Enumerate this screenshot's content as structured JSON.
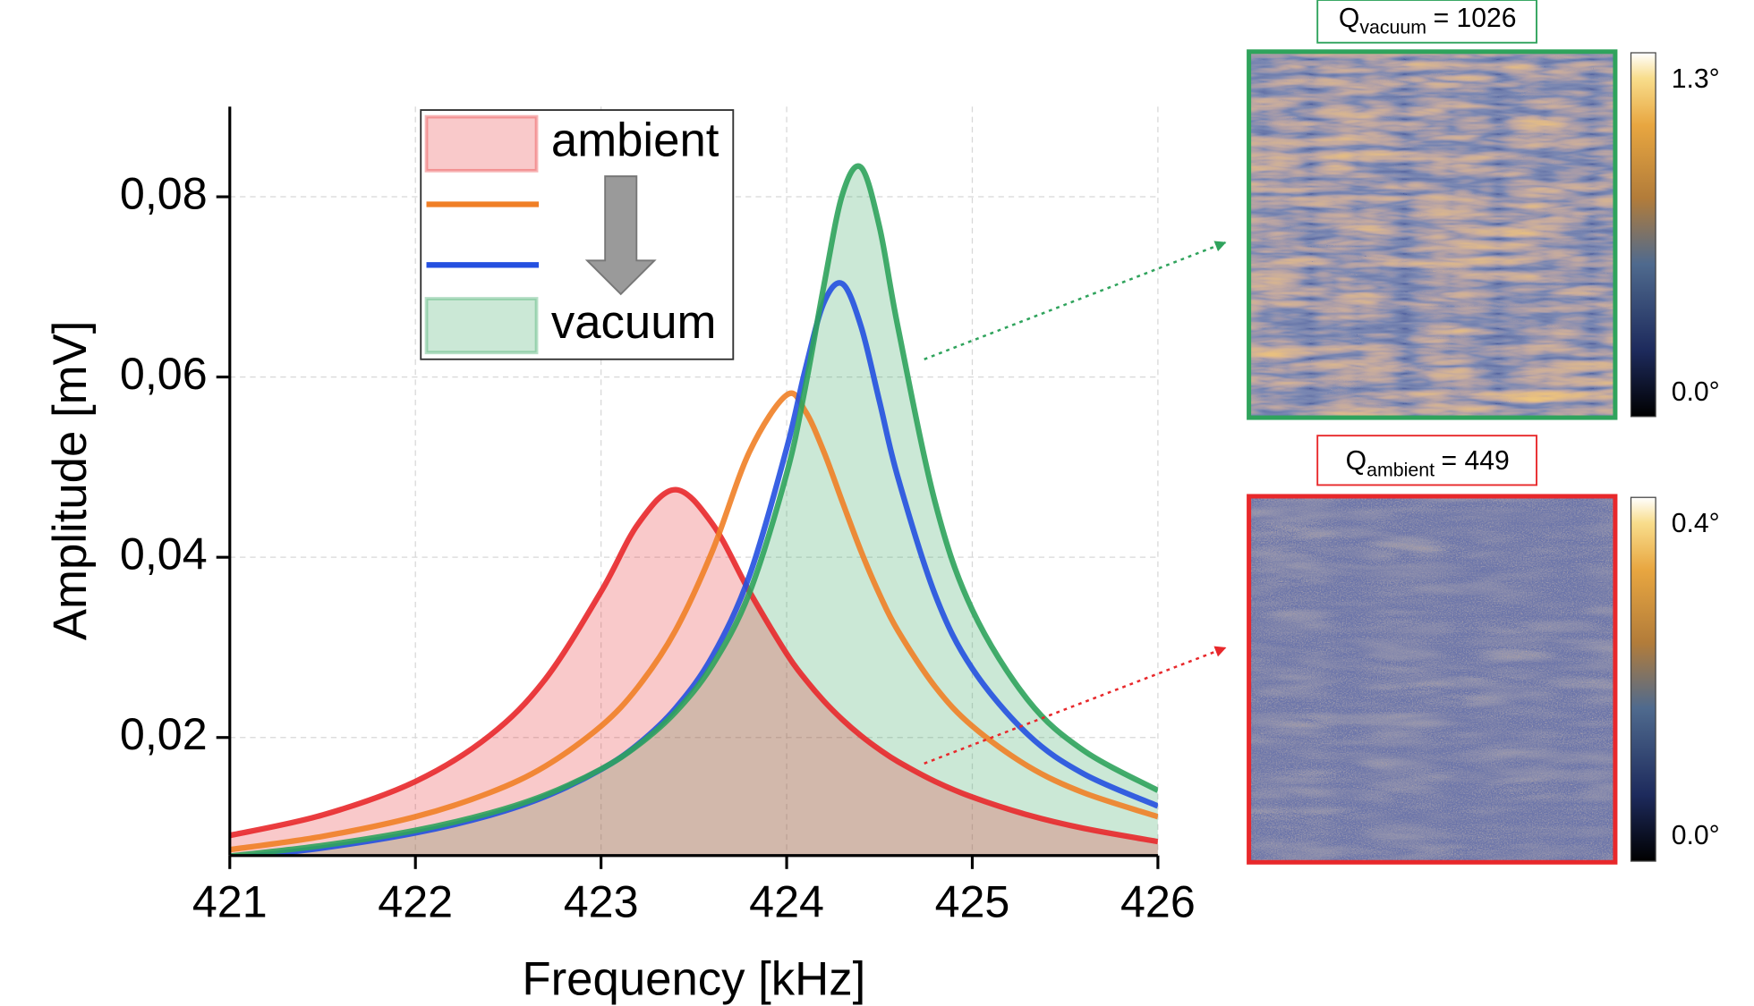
{
  "chart_data": {
    "type": "line",
    "x_label": "Frequency [kHz]",
    "y_label": "Amplitude [mV]",
    "x": [
      421,
      421.5,
      422,
      422.4,
      422.7,
      423,
      423.2,
      423.4,
      423.6,
      423.8,
      424,
      424.1,
      424.2,
      424.3,
      424.4,
      424.5,
      424.6,
      424.8,
      425,
      425.3,
      425.6,
      426
    ],
    "series": [
      {
        "name": "ambient",
        "color": "#e8282b",
        "fill": true,
        "values": [
          0.00913,
          0.0114,
          0.01512,
          0.0202,
          0.02648,
          0.03618,
          0.04371,
          0.0475,
          0.04371,
          0.03618,
          0.02929,
          0.02648,
          0.02406,
          0.02199,
          0.0202,
          0.01866,
          0.01732,
          0.01512,
          0.01339,
          0.0114,
          0.00992,
          0.00845
        ]
      },
      {
        "color": "#f07f26",
        "fill": false,
        "values": [
          0.00755,
          0.00903,
          0.01121,
          0.01387,
          0.01682,
          0.02126,
          0.02563,
          0.03183,
          0.0407,
          0.05172,
          0.058,
          0.05622,
          0.05172,
          0.04615,
          0.0407,
          0.03589,
          0.03183,
          0.02563,
          0.02126,
          0.01682,
          0.01387,
          0.01121
        ]
      },
      {
        "color": "#2450e0",
        "fill": false,
        "values": [
          0.00657,
          0.00774,
          0.00941,
          0.01136,
          0.01345,
          0.01645,
          0.01927,
          0.02322,
          0.02901,
          0.03799,
          0.05209,
          0.06082,
          0.06822,
          0.07035,
          0.06566,
          0.0573,
          0.04881,
          0.03584,
          0.02765,
          0.02032,
          0.01597,
          0.01239
        ]
      },
      {
        "name": "vacuum",
        "color": "#2fa35c",
        "fill": true,
        "values": [
          0.00684,
          0.00802,
          0.00969,
          0.01161,
          0.01363,
          0.01649,
          0.01915,
          0.02279,
          0.02803,
          0.03608,
          0.04929,
          0.05882,
          0.07009,
          0.08024,
          0.08328,
          0.07666,
          0.06548,
          0.04608,
          0.03417,
          0.02415,
          0.01855,
          0.01412
        ]
      }
    ],
    "xlim": [
      421,
      426
    ],
    "xticks": [
      421,
      422,
      423,
      424,
      425,
      426
    ],
    "ylim": [
      0.0069,
      0.09
    ],
    "yticks": [
      {
        "value": 0.02,
        "label": "0,02"
      },
      {
        "value": 0.04,
        "label": "0,04"
      },
      {
        "value": 0.06,
        "label": "0,06"
      },
      {
        "value": 0.08,
        "label": "0,08"
      }
    ],
    "grid": true
  },
  "insets": [
    {
      "label": "Q",
      "label_sub": "vacuum",
      "label_value": "= 1026",
      "colorbar_max": "1.3°",
      "colorbar_min": "0.0°"
    },
    {
      "label": "Q",
      "label_sub": "ambient",
      "label_value": "= 449",
      "colorbar_max": "0.4°",
      "colorbar_min": "0.0°"
    }
  ]
}
